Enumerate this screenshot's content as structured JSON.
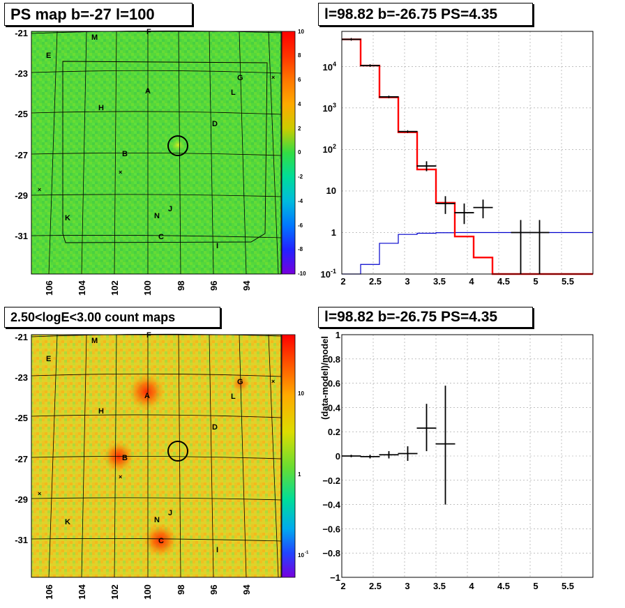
{
  "panels": {
    "top_left_title": "PS map b=-27 l=100",
    "top_right_title": "l=98.82 b=-26.75 PS=4.35",
    "bottom_left_title": "2.50<logE<3.00 count maps",
    "bottom_right_title": "l=98.82 b=-26.75 PS=4.35"
  },
  "maps": {
    "y_ticks": [
      "-21",
      "-23",
      "-25",
      "-27",
      "-29",
      "-31"
    ],
    "x_ticks": [
      "106",
      "104",
      "102",
      "100",
      "98",
      "96",
      "94"
    ],
    "source_labels": [
      "M",
      "F",
      "E",
      "G",
      "A",
      "L",
      "H",
      "D",
      "B",
      "J",
      "K",
      "N",
      "C",
      "I"
    ],
    "top_colorbar_ticks": [
      "10",
      "8",
      "6",
      "4",
      "2",
      "0",
      "-2",
      "-4",
      "-6",
      "-8",
      "-10"
    ],
    "bottom_colorbar_ticks": [
      "10",
      "1",
      "10",
      "-1"
    ]
  },
  "chart_data": [
    {
      "type": "heatmap",
      "title": "PS map b=-27 l=100",
      "colorbar_range": [
        -10,
        10
      ],
      "ylim": [
        -33,
        -20.8
      ],
      "y_ticks": [
        -21,
        -23,
        -25,
        -27,
        -29,
        -31
      ],
      "x_ticks": [
        106,
        104,
        102,
        100,
        98,
        96,
        94
      ],
      "marker": {
        "l": 98.82,
        "b": -26.75
      }
    },
    {
      "type": "line",
      "title": "l=98.82 b=-26.75 PS=4.35",
      "log_y": true,
      "xlim": [
        2,
        6
      ],
      "ylim": [
        0.1,
        70000
      ],
      "x_ticks": [
        2,
        2.5,
        3,
        3.5,
        4,
        4.5,
        5,
        5.5
      ],
      "y_ticks": [
        "10^-1",
        "1",
        "10",
        "10^2",
        "10^3",
        "10^4"
      ],
      "grid": true,
      "bin_edges": [
        2,
        2.3,
        2.6,
        2.9,
        3.2,
        3.5,
        3.8,
        4.1,
        4.4,
        4.7,
        5.0,
        5.3,
        5.6,
        6.0
      ],
      "series": [
        {
          "color": "#ff0000",
          "values": [
            45000,
            10500,
            1800,
            260,
            33,
            5.2,
            0.8,
            0.25,
            0.1,
            0.1,
            0.1,
            0.1,
            0.1
          ]
        },
        {
          "color": "#0000cc",
          "values": [
            0.1,
            0.17,
            0.55,
            0.9,
            0.96,
            0.99,
            1.0,
            1.0,
            1.0,
            1.0,
            1.0,
            1.0,
            1.0
          ]
        },
        {
          "color": "#000000",
          "points": [
            {
              "x": 2.15,
              "y": 45000
            },
            {
              "x": 2.45,
              "y": 10500
            },
            {
              "x": 2.75,
              "y": 1850
            },
            {
              "x": 3.05,
              "y": 270
            },
            {
              "x": 3.35,
              "y": 40,
              "ylo": 30,
              "yhi": 52
            },
            {
              "x": 3.65,
              "y": 5,
              "ylo": 2.8,
              "yhi": 7.5
            },
            {
              "x": 3.95,
              "y": 3,
              "ylo": 1.6,
              "yhi": 5
            },
            {
              "x": 4.25,
              "y": 4,
              "ylo": 2.2,
              "yhi": 6.2
            },
            {
              "x": 4.85,
              "y": 1,
              "ylo": 0.1,
              "yhi": 2
            },
            {
              "x": 5.15,
              "y": 1,
              "ylo": 0.1,
              "yhi": 2
            }
          ]
        }
      ]
    },
    {
      "type": "heatmap",
      "title": "2.50<logE<3.00 count maps",
      "log_colorbar": true,
      "colorbar_range": [
        0.05,
        40
      ],
      "y_ticks": [
        -21,
        -23,
        -25,
        -27,
        -29,
        -31
      ],
      "x_ticks": [
        106,
        104,
        102,
        100,
        98,
        96,
        94
      ],
      "marker": {
        "l": 98.82,
        "b": -26.75
      }
    },
    {
      "type": "scatter",
      "title": "l=98.82 b=-26.75 PS=4.35",
      "ylabel": "(data-model)/model",
      "xlim": [
        2,
        6
      ],
      "ylim": [
        -1,
        1
      ],
      "x_ticks": [
        2,
        2.5,
        3,
        3.5,
        4,
        4.5,
        5,
        5.5
      ],
      "y_ticks": [
        1,
        0.8,
        0.6,
        0.4,
        0.2,
        0,
        -0.2,
        -0.4,
        -0.6,
        -0.8,
        -1
      ],
      "grid": true,
      "points": [
        {
          "x": 2.15,
          "y": 0.0,
          "ylo": -0.01,
          "yhi": 0.01
        },
        {
          "x": 2.45,
          "y": -0.005,
          "ylo": -0.02,
          "yhi": 0.01
        },
        {
          "x": 2.75,
          "y": 0.01,
          "ylo": -0.02,
          "yhi": 0.04
        },
        {
          "x": 3.05,
          "y": 0.02,
          "ylo": -0.04,
          "yhi": 0.08
        },
        {
          "x": 3.35,
          "y": 0.23,
          "ylo": 0.04,
          "yhi": 0.43
        },
        {
          "x": 3.65,
          "y": 0.1,
          "ylo": -0.4,
          "yhi": 0.58
        }
      ]
    }
  ]
}
